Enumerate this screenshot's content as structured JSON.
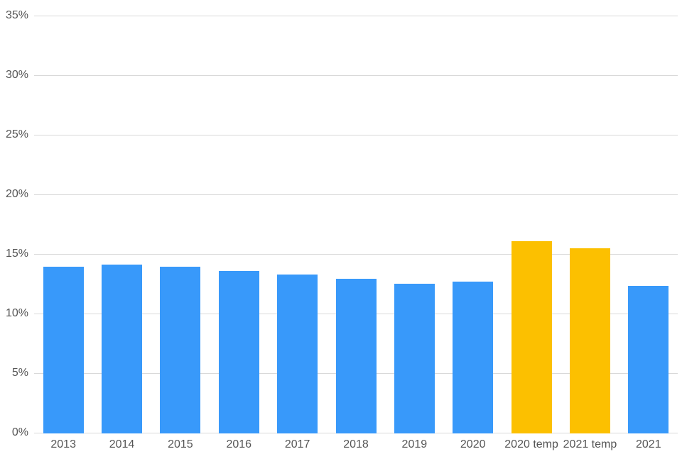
{
  "chart_data": {
    "type": "bar",
    "title": "",
    "xlabel": "",
    "ylabel": "",
    "categories": [
      "2013",
      "2014",
      "2015",
      "2016",
      "2017",
      "2018",
      "2019",
      "2020",
      "2020 temp",
      "2021 temp",
      "2021"
    ],
    "values": [
      13.9,
      14.1,
      13.9,
      13.6,
      13.3,
      12.9,
      12.5,
      12.7,
      16.1,
      15.5,
      12.3
    ],
    "bar_colors": [
      "#3899FA",
      "#3899FA",
      "#3899FA",
      "#3899FA",
      "#3899FA",
      "#3899FA",
      "#3899FA",
      "#3899FA",
      "#FCC000",
      "#FCC000",
      "#3899FA"
    ],
    "ylim": [
      0,
      35
    ],
    "y_tick_step": 5,
    "y_tick_labels": [
      "0%",
      "5%",
      "10%",
      "15%",
      "20%",
      "25%",
      "30%",
      "35%"
    ],
    "grid": true,
    "legend": false,
    "colors": {
      "bar_blue": "#3899FA",
      "bar_yellow": "#FCC000",
      "gridline": "#D9D9D9",
      "axis_text": "#555555",
      "background": "#FFFFFF"
    }
  }
}
